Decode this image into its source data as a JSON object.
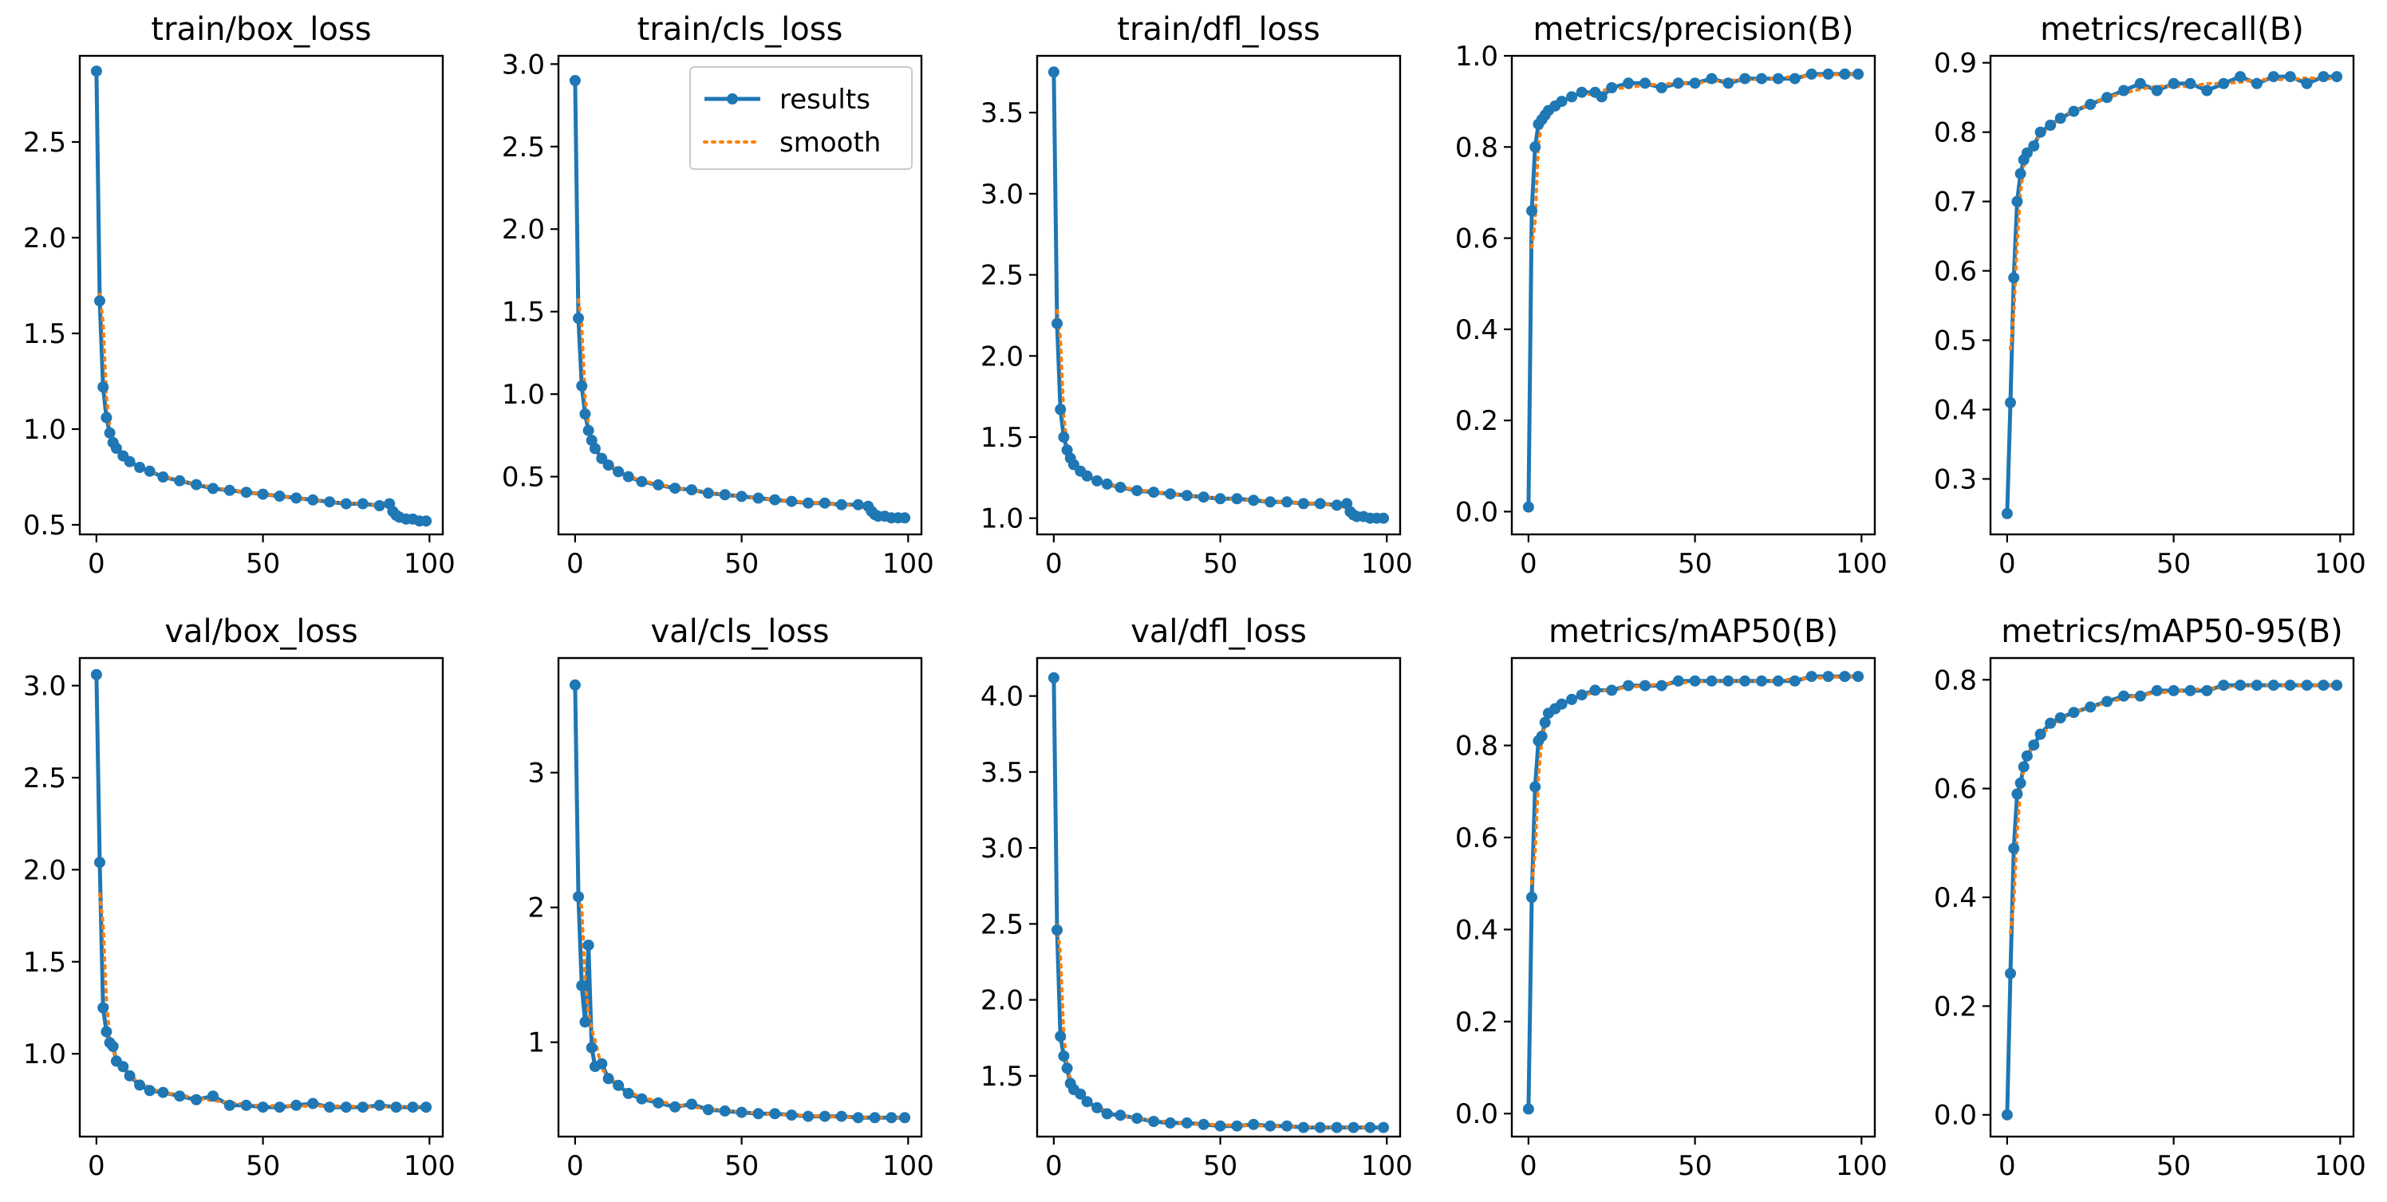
{
  "chart_data": {
    "type": "line",
    "colors": {
      "results": "#1f77b4",
      "smooth": "#ff7f0e"
    },
    "legend": {
      "panel": "train/cls_loss",
      "placement": "top-right",
      "entries": [
        "results",
        "smooth"
      ]
    },
    "panels": [
      {
        "title": "train/box_loss",
        "xlim": [
          -5,
          104
        ],
        "ylim": [
          0.45,
          2.95
        ],
        "xticks": [
          0,
          50,
          100
        ],
        "xtick_labels": [
          "0",
          "50",
          "100"
        ],
        "yticks": [
          0.5,
          1.0,
          1.5,
          2.0,
          2.5
        ],
        "ytick_labels": [
          "0.5",
          "1.0",
          "1.5",
          "2.0",
          "2.5"
        ],
        "series": [
          {
            "name": "results",
            "x": [
              0,
              1,
              2,
              3,
              4,
              5,
              6,
              8,
              10,
              13,
              16,
              20,
              25,
              30,
              35,
              40,
              45,
              50,
              55,
              60,
              65,
              70,
              75,
              80,
              85,
              88,
              89,
              90,
              91,
              93,
              95,
              97,
              99
            ],
            "y": [
              2.87,
              1.67,
              1.22,
              1.06,
              0.98,
              0.93,
              0.9,
              0.86,
              0.83,
              0.8,
              0.78,
              0.75,
              0.73,
              0.71,
              0.69,
              0.68,
              0.67,
              0.66,
              0.65,
              0.64,
              0.63,
              0.62,
              0.61,
              0.61,
              0.6,
              0.61,
              0.57,
              0.55,
              0.54,
              0.53,
              0.53,
              0.52,
              0.52
            ]
          }
        ]
      },
      {
        "title": "train/cls_loss",
        "xlim": [
          -5,
          104
        ],
        "ylim": [
          0.15,
          3.05
        ],
        "xticks": [
          0,
          50,
          100
        ],
        "xtick_labels": [
          "0",
          "50",
          "100"
        ],
        "yticks": [
          0.5,
          1.0,
          1.5,
          2.0,
          2.5,
          3.0
        ],
        "ytick_labels": [
          "0.5",
          "1.0",
          "1.5",
          "2.0",
          "2.5",
          "3.0"
        ],
        "series": [
          {
            "name": "results",
            "x": [
              0,
              1,
              2,
              3,
              4,
              5,
              6,
              8,
              10,
              13,
              16,
              20,
              25,
              30,
              35,
              40,
              45,
              50,
              55,
              60,
              65,
              70,
              75,
              80,
              85,
              88,
              89,
              90,
              91,
              93,
              95,
              97,
              99
            ],
            "y": [
              2.9,
              1.46,
              1.05,
              0.88,
              0.78,
              0.72,
              0.67,
              0.61,
              0.57,
              0.53,
              0.5,
              0.47,
              0.45,
              0.43,
              0.42,
              0.4,
              0.39,
              0.38,
              0.37,
              0.36,
              0.35,
              0.34,
              0.34,
              0.33,
              0.33,
              0.32,
              0.29,
              0.27,
              0.26,
              0.26,
              0.25,
              0.25,
              0.25
            ]
          }
        ]
      },
      {
        "title": "train/dfl_loss",
        "xlim": [
          -5,
          104
        ],
        "ylim": [
          0.9,
          3.85
        ],
        "xticks": [
          0,
          50,
          100
        ],
        "xtick_labels": [
          "0",
          "50",
          "100"
        ],
        "yticks": [
          1.0,
          1.5,
          2.0,
          2.5,
          3.0,
          3.5
        ],
        "ytick_labels": [
          "1.0",
          "1.5",
          "2.0",
          "2.5",
          "3.0",
          "3.5"
        ],
        "series": [
          {
            "name": "results",
            "x": [
              0,
              1,
              2,
              3,
              4,
              5,
              6,
              8,
              10,
              13,
              16,
              20,
              25,
              30,
              35,
              40,
              45,
              50,
              55,
              60,
              65,
              70,
              75,
              80,
              85,
              88,
              89,
              90,
              91,
              93,
              95,
              97,
              99
            ],
            "y": [
              3.75,
              2.2,
              1.67,
              1.5,
              1.42,
              1.37,
              1.33,
              1.29,
              1.26,
              1.23,
              1.21,
              1.19,
              1.17,
              1.16,
              1.15,
              1.14,
              1.13,
              1.12,
              1.12,
              1.11,
              1.1,
              1.1,
              1.09,
              1.09,
              1.08,
              1.09,
              1.04,
              1.02,
              1.01,
              1.01,
              1.0,
              1.0,
              1.0
            ]
          }
        ]
      },
      {
        "title": "metrics/precision(B)",
        "xlim": [
          -5,
          104
        ],
        "ylim": [
          -0.05,
          1.0
        ],
        "xticks": [
          0,
          50,
          100
        ],
        "xtick_labels": [
          "0",
          "50",
          "100"
        ],
        "yticks": [
          0.0,
          0.2,
          0.4,
          0.6,
          0.8,
          1.0
        ],
        "ytick_labels": [
          "0.0",
          "0.2",
          "0.4",
          "0.6",
          "0.8",
          "1.0"
        ],
        "series": [
          {
            "name": "results",
            "x": [
              0,
              1,
              2,
              3,
              4,
              5,
              6,
              8,
              10,
              13,
              16,
              20,
              22,
              25,
              30,
              35,
              40,
              45,
              50,
              55,
              60,
              65,
              70,
              75,
              80,
              85,
              90,
              95,
              99
            ],
            "y": [
              0.01,
              0.66,
              0.8,
              0.85,
              0.86,
              0.87,
              0.88,
              0.89,
              0.9,
              0.91,
              0.92,
              0.92,
              0.91,
              0.93,
              0.94,
              0.94,
              0.93,
              0.94,
              0.94,
              0.95,
              0.94,
              0.95,
              0.95,
              0.95,
              0.95,
              0.96,
              0.96,
              0.96,
              0.96
            ]
          }
        ]
      },
      {
        "title": "metrics/recall(B)",
        "xlim": [
          -5,
          104
        ],
        "ylim": [
          0.22,
          0.91
        ],
        "xticks": [
          0,
          50,
          100
        ],
        "xtick_labels": [
          "0",
          "50",
          "100"
        ],
        "yticks": [
          0.3,
          0.4,
          0.5,
          0.6,
          0.7,
          0.8,
          0.9
        ],
        "ytick_labels": [
          "0.3",
          "0.4",
          "0.5",
          "0.6",
          "0.7",
          "0.8",
          "0.9"
        ],
        "series": [
          {
            "name": "results",
            "x": [
              0,
              1,
              2,
              3,
              4,
              5,
              6,
              8,
              10,
              13,
              16,
              20,
              25,
              30,
              35,
              40,
              45,
              50,
              55,
              60,
              65,
              70,
              75,
              80,
              85,
              90,
              95,
              99
            ],
            "y": [
              0.25,
              0.41,
              0.59,
              0.7,
              0.74,
              0.76,
              0.77,
              0.78,
              0.8,
              0.81,
              0.82,
              0.83,
              0.84,
              0.85,
              0.86,
              0.87,
              0.86,
              0.87,
              0.87,
              0.86,
              0.87,
              0.88,
              0.87,
              0.88,
              0.88,
              0.87,
              0.88,
              0.88
            ]
          }
        ]
      },
      {
        "title": "val/box_loss",
        "xlim": [
          -5,
          104
        ],
        "ylim": [
          0.55,
          3.15
        ],
        "xticks": [
          0,
          50,
          100
        ],
        "xtick_labels": [
          "0",
          "50",
          "100"
        ],
        "yticks": [
          1.0,
          1.5,
          2.0,
          2.5,
          3.0
        ],
        "ytick_labels": [
          "1.0",
          "1.5",
          "2.0",
          "2.5",
          "3.0"
        ],
        "series": [
          {
            "name": "results",
            "x": [
              0,
              1,
              2,
              3,
              4,
              5,
              6,
              8,
              10,
              13,
              16,
              20,
              25,
              30,
              35,
              40,
              45,
              50,
              55,
              60,
              65,
              70,
              75,
              80,
              85,
              90,
              95,
              99
            ],
            "y": [
              3.06,
              2.04,
              1.25,
              1.12,
              1.06,
              1.04,
              0.96,
              0.93,
              0.88,
              0.83,
              0.8,
              0.79,
              0.77,
              0.75,
              0.77,
              0.72,
              0.72,
              0.71,
              0.71,
              0.72,
              0.73,
              0.71,
              0.71,
              0.71,
              0.72,
              0.71,
              0.71,
              0.71
            ]
          }
        ]
      },
      {
        "title": "val/cls_loss",
        "xlim": [
          -5,
          104
        ],
        "ylim": [
          0.3,
          3.85
        ],
        "xticks": [
          0,
          50,
          100
        ],
        "xtick_labels": [
          "0",
          "50",
          "100"
        ],
        "yticks": [
          1,
          2,
          3
        ],
        "ytick_labels": [
          "1",
          "2",
          "3"
        ],
        "series": [
          {
            "name": "results",
            "x": [
              0,
              1,
              2,
              3,
              4,
              5,
              6,
              8,
              10,
              13,
              16,
              20,
              25,
              30,
              35,
              40,
              45,
              50,
              55,
              60,
              65,
              70,
              75,
              80,
              85,
              90,
              95,
              99
            ],
            "y": [
              3.65,
              2.08,
              1.42,
              1.15,
              1.72,
              0.96,
              0.82,
              0.84,
              0.73,
              0.68,
              0.62,
              0.58,
              0.55,
              0.52,
              0.54,
              0.5,
              0.49,
              0.48,
              0.47,
              0.47,
              0.46,
              0.45,
              0.45,
              0.45,
              0.44,
              0.44,
              0.44,
              0.44
            ]
          }
        ]
      },
      {
        "title": "val/dfl_loss",
        "xlim": [
          -5,
          104
        ],
        "ylim": [
          1.1,
          4.25
        ],
        "xticks": [
          0,
          50,
          100
        ],
        "xtick_labels": [
          "0",
          "50",
          "100"
        ],
        "yticks": [
          1.5,
          2.0,
          2.5,
          3.0,
          3.5,
          4.0
        ],
        "ytick_labels": [
          "1.5",
          "2.0",
          "2.5",
          "3.0",
          "3.5",
          "4.0"
        ],
        "series": [
          {
            "name": "results",
            "x": [
              0,
              1,
              2,
              3,
              4,
              5,
              6,
              8,
              10,
              13,
              16,
              20,
              25,
              30,
              35,
              40,
              45,
              50,
              55,
              60,
              65,
              70,
              75,
              80,
              85,
              90,
              95,
              99
            ],
            "y": [
              4.12,
              2.46,
              1.76,
              1.63,
              1.55,
              1.45,
              1.41,
              1.38,
              1.33,
              1.29,
              1.25,
              1.24,
              1.22,
              1.2,
              1.19,
              1.19,
              1.18,
              1.17,
              1.17,
              1.18,
              1.17,
              1.17,
              1.16,
              1.16,
              1.16,
              1.16,
              1.16,
              1.16
            ]
          }
        ]
      },
      {
        "title": "metrics/mAP50(B)",
        "xlim": [
          -5,
          104
        ],
        "ylim": [
          -0.05,
          0.99
        ],
        "xticks": [
          0,
          50,
          100
        ],
        "xtick_labels": [
          "0",
          "50",
          "100"
        ],
        "yticks": [
          0.0,
          0.2,
          0.4,
          0.6,
          0.8
        ],
        "ytick_labels": [
          "0.0",
          "0.2",
          "0.4",
          "0.6",
          "0.8"
        ],
        "series": [
          {
            "name": "results",
            "x": [
              0,
              1,
              2,
              3,
              4,
              5,
              6,
              8,
              10,
              13,
              16,
              20,
              25,
              30,
              35,
              40,
              45,
              50,
              55,
              60,
              65,
              70,
              75,
              80,
              85,
              90,
              95,
              99
            ],
            "y": [
              0.01,
              0.47,
              0.71,
              0.81,
              0.82,
              0.85,
              0.87,
              0.88,
              0.89,
              0.9,
              0.91,
              0.92,
              0.92,
              0.93,
              0.93,
              0.93,
              0.94,
              0.94,
              0.94,
              0.94,
              0.94,
              0.94,
              0.94,
              0.94,
              0.95,
              0.95,
              0.95,
              0.95
            ]
          }
        ]
      },
      {
        "title": "metrics/mAP50-95(B)",
        "xlim": [
          -5,
          104
        ],
        "ylim": [
          -0.04,
          0.84
        ],
        "xticks": [
          0,
          50,
          100
        ],
        "xtick_labels": [
          "0",
          "50",
          "100"
        ],
        "yticks": [
          0.0,
          0.2,
          0.4,
          0.6,
          0.8
        ],
        "ytick_labels": [
          "0.0",
          "0.2",
          "0.4",
          "0.6",
          "0.8"
        ],
        "series": [
          {
            "name": "results",
            "x": [
              0,
              1,
              2,
              3,
              4,
              5,
              6,
              8,
              10,
              13,
              16,
              20,
              25,
              30,
              35,
              40,
              45,
              50,
              55,
              60,
              65,
              70,
              75,
              80,
              85,
              90,
              95,
              99
            ],
            "y": [
              0.0,
              0.26,
              0.49,
              0.59,
              0.61,
              0.64,
              0.66,
              0.68,
              0.7,
              0.72,
              0.73,
              0.74,
              0.75,
              0.76,
              0.77,
              0.77,
              0.78,
              0.78,
              0.78,
              0.78,
              0.79,
              0.79,
              0.79,
              0.79,
              0.79,
              0.79,
              0.79,
              0.79
            ]
          }
        ]
      }
    ]
  }
}
